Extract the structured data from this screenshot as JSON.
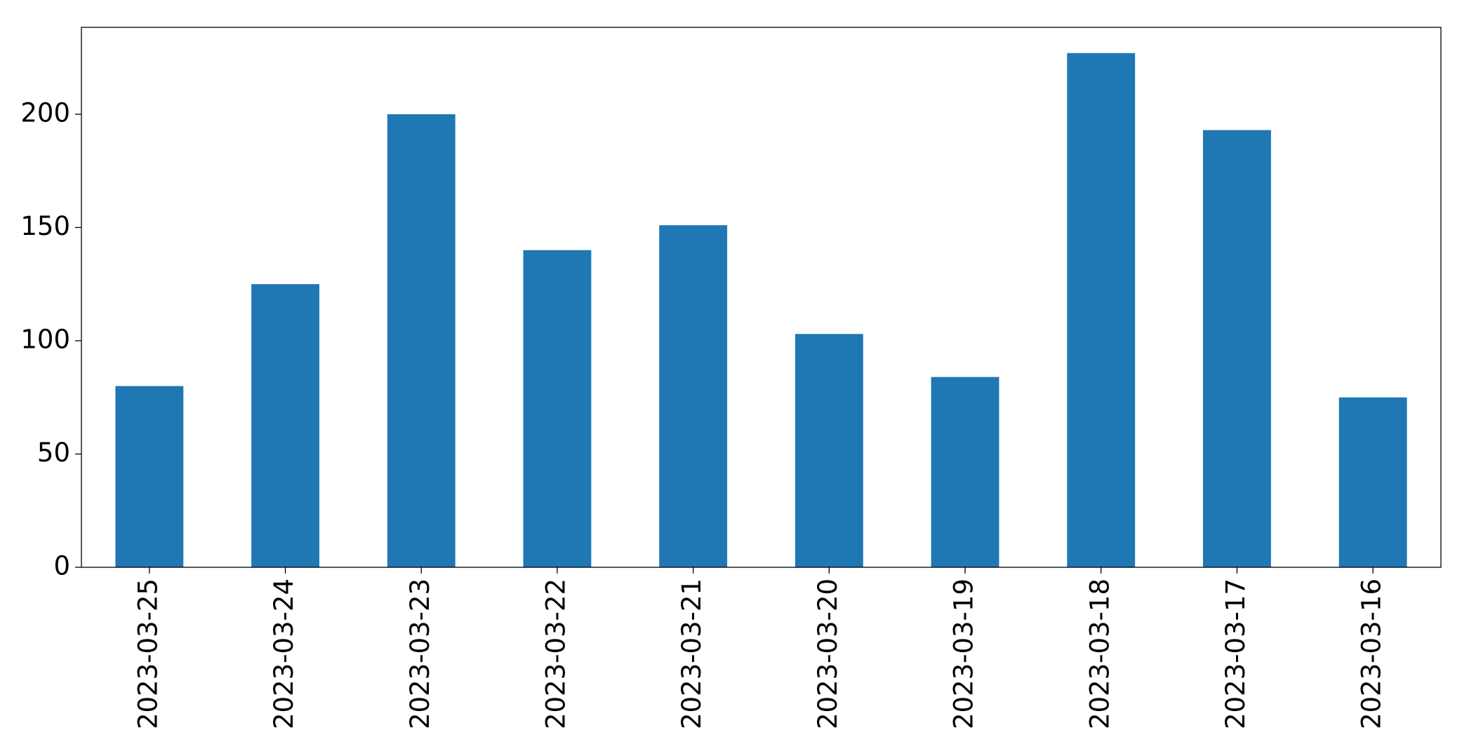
{
  "chart_data": {
    "type": "bar",
    "categories": [
      "2023-03-25",
      "2023-03-24",
      "2023-03-23",
      "2023-03-22",
      "2023-03-21",
      "2023-03-20",
      "2023-03-19",
      "2023-03-18",
      "2023-03-17",
      "2023-03-16"
    ],
    "values": [
      80,
      125,
      200,
      140,
      151,
      103,
      84,
      227,
      193,
      75
    ],
    "color": "#1f77b4",
    "ylim": [
      0,
      238.35
    ],
    "yticks": [
      0,
      50,
      100,
      150,
      200
    ],
    "grid": false
  }
}
